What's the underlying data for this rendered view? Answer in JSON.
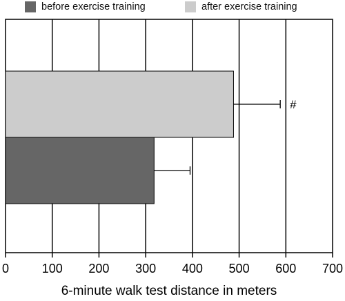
{
  "chart_data": {
    "type": "bar",
    "orientation": "horizontal",
    "xlabel": "6-minute walk test distance in meters",
    "ylabel": "",
    "xlim": [
      0,
      700
    ],
    "xticks": [
      0,
      100,
      200,
      300,
      400,
      500,
      600,
      700
    ],
    "grid": "vertical",
    "legend_position": "top",
    "series": [
      {
        "name": "before exercise training",
        "value": 318,
        "error": 77,
        "color": "#666666"
      },
      {
        "name": "after exercise training",
        "value": 488,
        "error": 100,
        "color": "#cccccc"
      }
    ],
    "annotations": [
      {
        "text": "#",
        "series": "after exercise training"
      }
    ]
  }
}
